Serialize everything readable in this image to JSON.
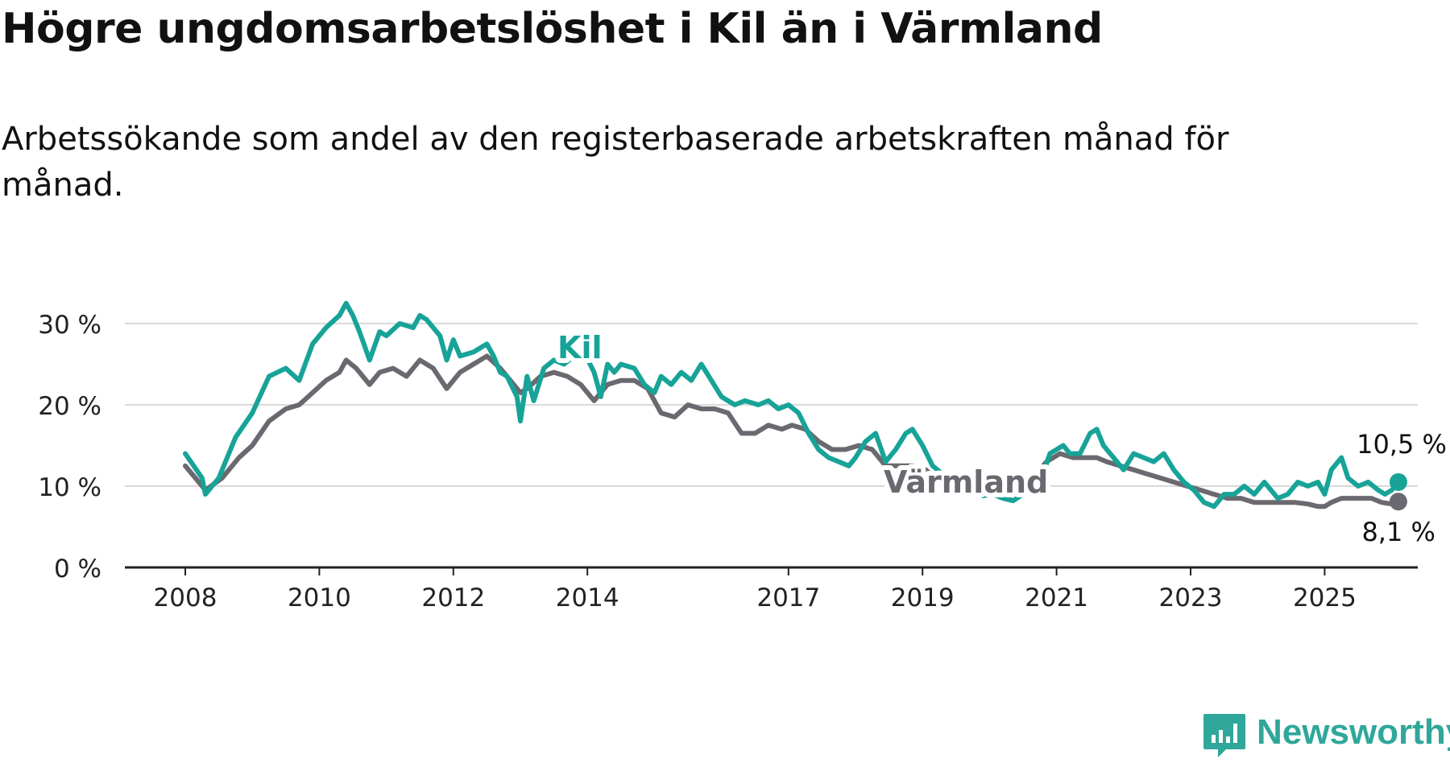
{
  "title": "Högre ungdomsarbetslöshet i Kil än i Värmland",
  "subtitle": "Arbetssökande som andel av den registerbaserade arbetskraften månad för månad.",
  "brand": {
    "name": "Newsworthy",
    "color": "#2fa79a",
    "icon": "newsworthy-logo-icon"
  },
  "chart_data": {
    "type": "line",
    "title": "Högre ungdomsarbetslöshet i Kil än i Värmland",
    "subtitle": "Arbetssökande som andel av den registerbaserade arbetskraften månad för månad.",
    "xlim": [
      2007.9,
      2026.4
    ],
    "ylim": [
      0,
      30
    ],
    "y_ticks": [
      0,
      10,
      20,
      30
    ],
    "y_tick_labels": [
      "0 %",
      "10 %",
      "20 %",
      "30 %"
    ],
    "x_ticks": [
      2008,
      2010,
      2012,
      2014,
      2017,
      2019,
      2021,
      2023,
      2025
    ],
    "x_tick_labels": [
      "2008",
      "2010",
      "2012",
      "2014",
      "2017",
      "2019",
      "2021",
      "2023",
      "2025"
    ],
    "grid": true,
    "series": [
      {
        "name": "Kil",
        "color": "#17a398",
        "end_label": "10,5 %",
        "points": [
          [
            2008.0,
            14.0
          ],
          [
            2008.25,
            11.0
          ],
          [
            2008.3,
            9.0
          ],
          [
            2008.5,
            11.0
          ],
          [
            2008.75,
            16.0
          ],
          [
            2009.0,
            19.0
          ],
          [
            2009.25,
            23.5
          ],
          [
            2009.5,
            24.5
          ],
          [
            2009.7,
            23.0
          ],
          [
            2009.9,
            27.5
          ],
          [
            2010.1,
            29.5
          ],
          [
            2010.3,
            31.0
          ],
          [
            2010.4,
            32.5
          ],
          [
            2010.5,
            31.0
          ],
          [
            2010.6,
            29.0
          ],
          [
            2010.75,
            25.5
          ],
          [
            2010.9,
            29.0
          ],
          [
            2011.0,
            28.5
          ],
          [
            2011.2,
            30.0
          ],
          [
            2011.4,
            29.5
          ],
          [
            2011.5,
            31.0
          ],
          [
            2011.6,
            30.5
          ],
          [
            2011.8,
            28.5
          ],
          [
            2011.9,
            25.5
          ],
          [
            2012.0,
            28.0
          ],
          [
            2012.1,
            26.0
          ],
          [
            2012.3,
            26.5
          ],
          [
            2012.5,
            27.5
          ],
          [
            2012.6,
            26.0
          ],
          [
            2012.7,
            24.0
          ],
          [
            2012.8,
            23.5
          ],
          [
            2012.95,
            21.0
          ],
          [
            2013.0,
            18.0
          ],
          [
            2013.1,
            23.5
          ],
          [
            2013.2,
            20.5
          ],
          [
            2013.35,
            24.5
          ],
          [
            2013.5,
            25.5
          ],
          [
            2013.65,
            25.0
          ],
          [
            2013.8,
            26.0
          ],
          [
            2013.95,
            26.5
          ],
          [
            2014.1,
            24.0
          ],
          [
            2014.2,
            21.0
          ],
          [
            2014.3,
            25.0
          ],
          [
            2014.4,
            24.0
          ],
          [
            2014.5,
            25.0
          ],
          [
            2014.7,
            24.5
          ],
          [
            2014.85,
            22.5
          ],
          [
            2015.0,
            21.5
          ],
          [
            2015.1,
            23.5
          ],
          [
            2015.25,
            22.5
          ],
          [
            2015.4,
            24.0
          ],
          [
            2015.55,
            23.0
          ],
          [
            2015.7,
            25.0
          ],
          [
            2015.85,
            23.0
          ],
          [
            2016.0,
            21.0
          ],
          [
            2016.2,
            20.0
          ],
          [
            2016.35,
            20.5
          ],
          [
            2016.55,
            20.0
          ],
          [
            2016.7,
            20.5
          ],
          [
            2016.85,
            19.5
          ],
          [
            2017.0,
            20.0
          ],
          [
            2017.15,
            19.0
          ],
          [
            2017.3,
            16.5
          ],
          [
            2017.45,
            14.5
          ],
          [
            2017.6,
            13.5
          ],
          [
            2017.75,
            13.0
          ],
          [
            2017.9,
            12.5
          ],
          [
            2018.0,
            13.5
          ],
          [
            2018.15,
            15.5
          ],
          [
            2018.3,
            16.5
          ],
          [
            2018.45,
            13.0
          ],
          [
            2018.6,
            14.5
          ],
          [
            2018.75,
            16.5
          ],
          [
            2018.85,
            17.0
          ],
          [
            2019.0,
            15.0
          ],
          [
            2019.15,
            12.5
          ],
          [
            2019.3,
            11.5
          ],
          [
            2019.45,
            10.0
          ],
          [
            2019.6,
            9.0
          ],
          [
            2019.75,
            9.5
          ],
          [
            2019.9,
            8.8
          ],
          [
            2020.05,
            9.0
          ],
          [
            2020.2,
            8.5
          ],
          [
            2020.35,
            8.2
          ],
          [
            2020.5,
            9.0
          ],
          [
            2020.65,
            10.0
          ],
          [
            2020.8,
            11.5
          ],
          [
            2020.9,
            14.0
          ],
          [
            2021.0,
            14.5
          ],
          [
            2021.1,
            15.0
          ],
          [
            2021.2,
            14.0
          ],
          [
            2021.35,
            14.0
          ],
          [
            2021.5,
            16.5
          ],
          [
            2021.6,
            17.0
          ],
          [
            2021.7,
            15.0
          ],
          [
            2021.85,
            13.5
          ],
          [
            2022.0,
            12.0
          ],
          [
            2022.15,
            14.0
          ],
          [
            2022.3,
            13.5
          ],
          [
            2022.45,
            13.0
          ],
          [
            2022.6,
            14.0
          ],
          [
            2022.75,
            12.0
          ],
          [
            2022.9,
            10.5
          ],
          [
            2023.05,
            9.5
          ],
          [
            2023.2,
            8.0
          ],
          [
            2023.35,
            7.5
          ],
          [
            2023.5,
            9.0
          ],
          [
            2023.65,
            9.0
          ],
          [
            2023.8,
            10.0
          ],
          [
            2023.95,
            9.0
          ],
          [
            2024.1,
            10.5
          ],
          [
            2024.2,
            9.5
          ],
          [
            2024.3,
            8.5
          ],
          [
            2024.45,
            9.0
          ],
          [
            2024.6,
            10.5
          ],
          [
            2024.75,
            10.0
          ],
          [
            2024.9,
            10.5
          ],
          [
            2025.0,
            9.0
          ],
          [
            2025.1,
            12.0
          ],
          [
            2025.25,
            13.5
          ],
          [
            2025.35,
            11.0
          ],
          [
            2025.5,
            10.0
          ],
          [
            2025.65,
            10.5
          ],
          [
            2025.8,
            9.5
          ],
          [
            2025.9,
            9.0
          ],
          [
            2026.0,
            9.5
          ],
          [
            2026.1,
            10.5
          ]
        ]
      },
      {
        "name": "Värmland",
        "color": "#6b6970",
        "end_label": "8,1 %",
        "points": [
          [
            2008.0,
            12.5
          ],
          [
            2008.3,
            9.5
          ],
          [
            2008.55,
            11.0
          ],
          [
            2008.8,
            13.5
          ],
          [
            2009.0,
            15.0
          ],
          [
            2009.25,
            18.0
          ],
          [
            2009.5,
            19.5
          ],
          [
            2009.7,
            20.0
          ],
          [
            2009.9,
            21.5
          ],
          [
            2010.1,
            23.0
          ],
          [
            2010.3,
            24.0
          ],
          [
            2010.4,
            25.5
          ],
          [
            2010.55,
            24.5
          ],
          [
            2010.75,
            22.5
          ],
          [
            2010.9,
            24.0
          ],
          [
            2011.1,
            24.5
          ],
          [
            2011.3,
            23.5
          ],
          [
            2011.5,
            25.5
          ],
          [
            2011.7,
            24.5
          ],
          [
            2011.9,
            22.0
          ],
          [
            2012.1,
            24.0
          ],
          [
            2012.3,
            25.0
          ],
          [
            2012.5,
            26.0
          ],
          [
            2012.7,
            24.5
          ],
          [
            2012.85,
            23.0
          ],
          [
            2013.0,
            21.5
          ],
          [
            2013.1,
            22.0
          ],
          [
            2013.3,
            23.5
          ],
          [
            2013.5,
            24.0
          ],
          [
            2013.7,
            23.5
          ],
          [
            2013.9,
            22.5
          ],
          [
            2014.1,
            20.5
          ],
          [
            2014.3,
            22.5
          ],
          [
            2014.5,
            23.0
          ],
          [
            2014.7,
            23.0
          ],
          [
            2014.9,
            22.0
          ],
          [
            2015.1,
            19.0
          ],
          [
            2015.3,
            18.5
          ],
          [
            2015.5,
            20.0
          ],
          [
            2015.7,
            19.5
          ],
          [
            2015.9,
            19.5
          ],
          [
            2016.1,
            19.0
          ],
          [
            2016.3,
            16.5
          ],
          [
            2016.5,
            16.5
          ],
          [
            2016.7,
            17.5
          ],
          [
            2016.9,
            17.0
          ],
          [
            2017.05,
            17.5
          ],
          [
            2017.25,
            17.0
          ],
          [
            2017.45,
            15.5
          ],
          [
            2017.65,
            14.5
          ],
          [
            2017.85,
            14.5
          ],
          [
            2018.05,
            15.0
          ],
          [
            2018.25,
            14.5
          ],
          [
            2018.45,
            12.5
          ],
          [
            2018.65,
            12.5
          ],
          [
            2018.85,
            12.5
          ],
          [
            2019.05,
            12.0
          ],
          [
            2019.25,
            10.5
          ],
          [
            2019.45,
            9.5
          ],
          [
            2019.65,
            9.0
          ],
          [
            2019.85,
            9.0
          ],
          [
            2020.05,
            9.0
          ],
          [
            2020.25,
            8.5
          ],
          [
            2020.45,
            9.5
          ],
          [
            2020.65,
            11.0
          ],
          [
            2020.85,
            13.0
          ],
          [
            2021.05,
            14.0
          ],
          [
            2021.25,
            13.5
          ],
          [
            2021.45,
            13.5
          ],
          [
            2021.6,
            13.5
          ],
          [
            2021.75,
            13.0
          ],
          [
            2021.95,
            12.5
          ],
          [
            2022.15,
            12.0
          ],
          [
            2022.35,
            11.5
          ],
          [
            2022.55,
            11.0
          ],
          [
            2022.75,
            10.5
          ],
          [
            2022.95,
            10.0
          ],
          [
            2023.15,
            9.5
          ],
          [
            2023.35,
            9.0
          ],
          [
            2023.55,
            8.5
          ],
          [
            2023.75,
            8.5
          ],
          [
            2023.95,
            8.0
          ],
          [
            2024.15,
            8.0
          ],
          [
            2024.35,
            8.0
          ],
          [
            2024.55,
            8.0
          ],
          [
            2024.75,
            7.8
          ],
          [
            2024.9,
            7.5
          ],
          [
            2025.0,
            7.5
          ],
          [
            2025.1,
            8.0
          ],
          [
            2025.25,
            8.5
          ],
          [
            2025.4,
            8.5
          ],
          [
            2025.55,
            8.5
          ],
          [
            2025.7,
            8.5
          ],
          [
            2025.85,
            8.0
          ],
          [
            2026.0,
            7.8
          ],
          [
            2026.1,
            8.1
          ]
        ]
      }
    ]
  }
}
